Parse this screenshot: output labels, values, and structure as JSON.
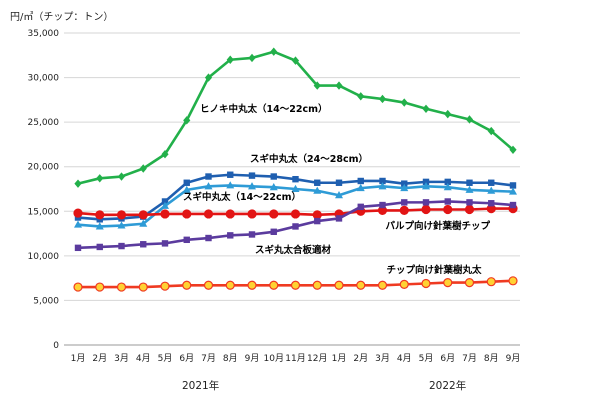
{
  "chart_data": {
    "type": "line",
    "unit_label": "円/㎥（チップ：トン）",
    "ylim": [
      0,
      35000
    ],
    "yticks": [
      "0",
      "5,000",
      "10,000",
      "15,000",
      "20,000",
      "25,000",
      "30,000",
      "35,000"
    ],
    "categories": [
      "1月",
      "2月",
      "3月",
      "4月",
      "5月",
      "6月",
      "7月",
      "8月",
      "9月",
      "10月",
      "11月",
      "12月",
      "1月",
      "2月",
      "3月",
      "4月",
      "5月",
      "6月",
      "7月",
      "8月",
      "9月"
    ],
    "year_labels": [
      "2021年",
      "2022年"
    ],
    "grid": true,
    "series": [
      {
        "name": "ヒノキ中丸太（14～22cm）",
        "color": "#22b04a",
        "marker": "diamond",
        "values": [
          18100,
          18700,
          18900,
          19800,
          21400,
          25200,
          30000,
          32000,
          32200,
          32900,
          31900,
          29100,
          29100,
          27900,
          27600,
          27200,
          26500,
          25900,
          25300,
          24000,
          21900
        ]
      },
      {
        "name": "スギ中丸太（24～28cm）",
        "color": "#1f5fb0",
        "marker": "square",
        "values": [
          14300,
          14100,
          14200,
          14400,
          16100,
          18200,
          18900,
          19100,
          19000,
          18900,
          18600,
          18200,
          18200,
          18400,
          18400,
          18100,
          18300,
          18300,
          18200,
          18200,
          17900
        ]
      },
      {
        "name": "スギ中丸太（14～22cm）",
        "color": "#2e9bd6",
        "marker": "triangle",
        "values": [
          13500,
          13300,
          13400,
          13600,
          15600,
          17400,
          17800,
          17900,
          17800,
          17700,
          17500,
          17300,
          16800,
          17600,
          17800,
          17600,
          17800,
          17700,
          17400,
          17300,
          17200
        ]
      },
      {
        "name": "パルプ向け針葉樹チップ",
        "color": "#e21515",
        "marker": "circle",
        "values": [
          14800,
          14600,
          14600,
          14600,
          14700,
          14700,
          14700,
          14700,
          14700,
          14700,
          14700,
          14600,
          14700,
          15000,
          15100,
          15100,
          15200,
          15200,
          15200,
          15300,
          15300
        ]
      },
      {
        "name": "スギ丸太合板適材",
        "color": "#5b3b9e",
        "marker": "square",
        "values": [
          10900,
          11000,
          11100,
          11300,
          11400,
          11800,
          12000,
          12300,
          12400,
          12700,
          13300,
          13900,
          14200,
          15500,
          15700,
          16000,
          16000,
          16100,
          16000,
          15900,
          15700
        ]
      },
      {
        "name": "チップ向け針葉樹丸太",
        "color": "#ef3a22",
        "fill": "#ffd233",
        "marker": "circle",
        "values": [
          6500,
          6500,
          6500,
          6500,
          6600,
          6700,
          6700,
          6700,
          6700,
          6700,
          6700,
          6700,
          6700,
          6700,
          6700,
          6800,
          6900,
          7000,
          7000,
          7100,
          7200
        ]
      }
    ]
  }
}
